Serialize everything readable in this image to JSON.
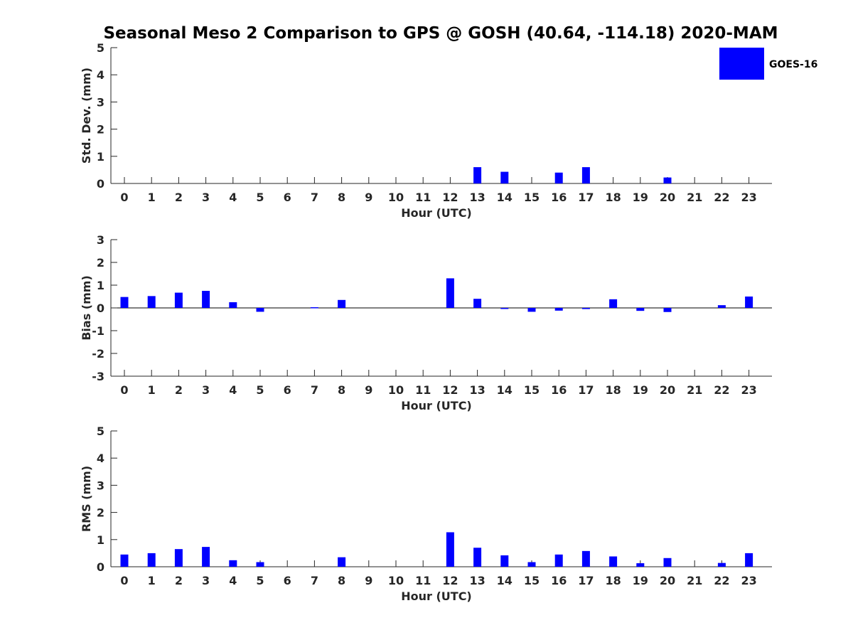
{
  "title": "Seasonal Meso 2 Comparison to GPS @ GOSH (40.64, -114.18) 2020-MAM",
  "legend": {
    "label": "GOES-16",
    "color": "#0000ff"
  },
  "colors": {
    "bar": "#0000ff",
    "axis": "#262626"
  },
  "chart_data": [
    {
      "type": "bar",
      "title": "Seasonal Meso 2 Comparison to GPS @ GOSH (40.64, -114.18) 2020-MAM",
      "xlabel": "Hour (UTC)",
      "ylabel": "Std. Dev. (mm)",
      "ylim": [
        0,
        5
      ],
      "yticks": [
        0,
        1,
        2,
        3,
        4,
        5
      ],
      "categories": [
        "0",
        "1",
        "2",
        "3",
        "4",
        "5",
        "6",
        "7",
        "8",
        "9",
        "10",
        "11",
        "12",
        "13",
        "14",
        "15",
        "16",
        "17",
        "18",
        "19",
        "20",
        "21",
        "22",
        "23"
      ],
      "series": [
        {
          "name": "GOES-16",
          "values": [
            0,
            0,
            0,
            0,
            0,
            0,
            0,
            0,
            0,
            0,
            0,
            0,
            0,
            0.6,
            0.43,
            0,
            0.4,
            0.6,
            0,
            0,
            0.22,
            0,
            0,
            0
          ]
        }
      ]
    },
    {
      "type": "bar",
      "xlabel": "Hour (UTC)",
      "ylabel": "Bias (mm)",
      "ylim": [
        -3,
        3
      ],
      "yticks": [
        -3,
        -2,
        -1,
        0,
        1,
        2,
        3
      ],
      "categories": [
        "0",
        "1",
        "2",
        "3",
        "4",
        "5",
        "6",
        "7",
        "8",
        "9",
        "10",
        "11",
        "12",
        "13",
        "14",
        "15",
        "16",
        "17",
        "18",
        "19",
        "20",
        "21",
        "22",
        "23"
      ],
      "series": [
        {
          "name": "GOES-16",
          "values": [
            0.48,
            0.52,
            0.67,
            0.75,
            0.25,
            -0.17,
            0,
            0.03,
            0.35,
            0,
            0,
            0,
            1.3,
            0.4,
            -0.02,
            -0.17,
            -0.12,
            -0.05,
            0.38,
            -0.13,
            -0.18,
            0,
            0.12,
            0.5
          ]
        }
      ]
    },
    {
      "type": "bar",
      "xlabel": "Hour (UTC)",
      "ylabel": "RMS (mm)",
      "ylim": [
        0,
        5
      ],
      "yticks": [
        0,
        1,
        2,
        3,
        4,
        5
      ],
      "categories": [
        "0",
        "1",
        "2",
        "3",
        "4",
        "5",
        "6",
        "7",
        "8",
        "9",
        "10",
        "11",
        "12",
        "13",
        "14",
        "15",
        "16",
        "17",
        "18",
        "19",
        "20",
        "21",
        "22",
        "23"
      ],
      "series": [
        {
          "name": "GOES-16",
          "values": [
            0.45,
            0.5,
            0.65,
            0.73,
            0.24,
            0.17,
            0,
            0,
            0.35,
            0,
            0,
            0,
            1.27,
            0.7,
            0.42,
            0.17,
            0.45,
            0.58,
            0.38,
            0.13,
            0.32,
            0,
            0.14,
            0.5
          ]
        }
      ]
    }
  ]
}
